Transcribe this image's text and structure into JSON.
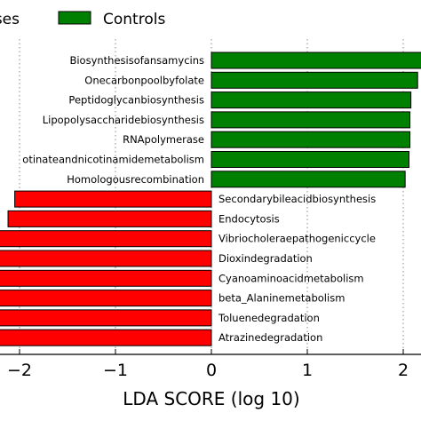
{
  "chart_data": {
    "type": "bar",
    "orientation": "horizontal",
    "xlabel": "LDA SCORE (log 10)",
    "xlim": [
      -2.2,
      2.1
    ],
    "xticks": [
      -2,
      -1,
      0,
      1,
      2
    ],
    "xtick_labels": [
      "−2",
      "−1",
      "0",
      "1",
      "2"
    ],
    "grid": "vertical dotted",
    "legend": {
      "placement": "top",
      "entries": [
        {
          "label": "ses",
          "color": "#ff0000"
        },
        {
          "label": "Controls",
          "color": "#008000"
        }
      ]
    },
    "series": [
      {
        "name": "Controls",
        "color": "#008000",
        "categories": [
          "Biosynthesisofansamycins",
          "Onecarbonpoolbyfolate",
          "Peptidoglycanbiosynthesis",
          "Lipopolysaccharidebiosynthesis",
          "RNApolymerase",
          "otinateandnicotinamidemetabolism",
          "Homologousrecombination"
        ],
        "values": [
          2.2,
          2.15,
          2.08,
          2.07,
          2.07,
          2.06,
          2.02
        ]
      },
      {
        "name": "ses",
        "color": "#ff0000",
        "categories": [
          "Secondarybileacidbiosynthesis",
          "Endocytosis",
          "Vibriocholeraepathogeniccycle",
          "Dioxindegradation",
          "Cyanoaminoacidmetabolism",
          "beta_Alaninemetabolism",
          "Toluenedegradation",
          "Atrazinedegradation"
        ],
        "values": [
          -2.05,
          -2.12,
          -2.3,
          -2.35,
          -2.4,
          -2.45,
          -2.5,
          -2.55
        ]
      }
    ]
  }
}
